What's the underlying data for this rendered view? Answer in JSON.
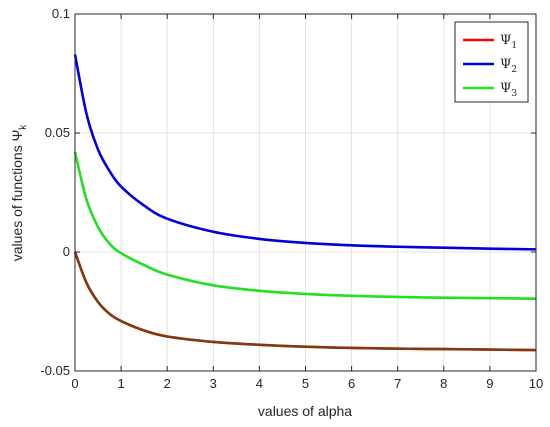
{
  "chart_data": {
    "type": "line",
    "title": "",
    "xlabel": "values of alpha",
    "ylabel": "values of functions Ψ",
    "ylabel_subscript": "k",
    "xlim": [
      0,
      10
    ],
    "ylim": [
      -0.05,
      0.1
    ],
    "x_ticks": [
      0,
      1,
      2,
      3,
      4,
      5,
      6,
      7,
      8,
      9,
      10
    ],
    "x_tick_labels": [
      "0",
      "1",
      "2",
      "3",
      "4",
      "5",
      "6",
      "7",
      "8",
      "9",
      "10"
    ],
    "y_ticks": [
      -0.05,
      0,
      0.05,
      0.1
    ],
    "y_tick_labels": [
      "-0.05",
      "0",
      "0.05",
      "0.1"
    ],
    "grid": true,
    "legend_position": "top-right",
    "x": [
      0,
      0.25,
      0.5,
      0.75,
      1,
      1.5,
      2,
      3,
      4,
      5,
      6,
      7,
      8,
      9,
      10
    ],
    "series": [
      {
        "name": "Ψ",
        "name_subscript": "1",
        "color": "#ff0000",
        "values": [
          0,
          -0.013,
          -0.021,
          -0.026,
          -0.029,
          -0.033,
          -0.0355,
          -0.0378,
          -0.039,
          -0.0398,
          -0.0403,
          -0.0406,
          -0.0408,
          -0.041,
          -0.0412
        ]
      },
      {
        "name": "Ψ",
        "name_subscript": "2",
        "color": "#0000dd",
        "values": [
          0.083,
          0.058,
          0.043,
          0.034,
          0.0275,
          0.0195,
          0.014,
          0.0085,
          0.0055,
          0.0038,
          0.0028,
          0.0022,
          0.0018,
          0.0014,
          0.0011
        ]
      },
      {
        "name": "Ψ",
        "name_subscript": "3",
        "color": "#22e022",
        "values": [
          0.042,
          0.022,
          0.0105,
          0.0035,
          -0.0005,
          -0.0055,
          -0.0095,
          -0.014,
          -0.0163,
          -0.0176,
          -0.0184,
          -0.0189,
          -0.0192,
          -0.0194,
          -0.0196
        ]
      }
    ],
    "overlay_color": "#7a3d12"
  }
}
